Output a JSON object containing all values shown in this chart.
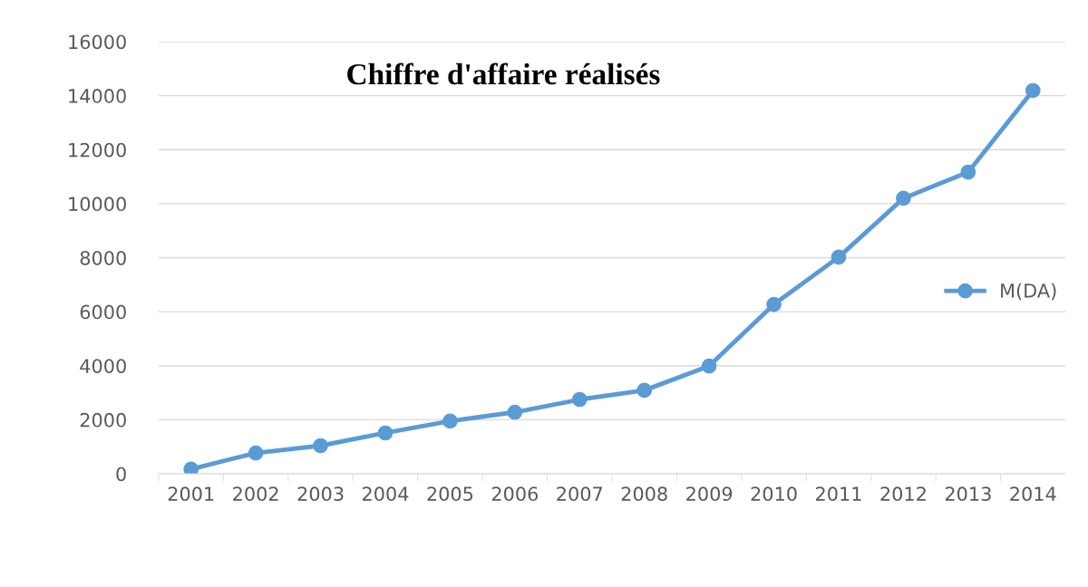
{
  "chart_data": {
    "type": "line",
    "title": "Chiffre d'affaire réalisés",
    "categories": [
      "2001",
      "2002",
      "2003",
      "2004",
      "2005",
      "2006",
      "2007",
      "2008",
      "2009",
      "2010",
      "2011",
      "2012",
      "2013",
      "2014"
    ],
    "series": [
      {
        "name": "M(DA)",
        "color": "#5b9bd5",
        "values": [
          170,
          770,
          1040,
          1510,
          1950,
          2280,
          2750,
          3090,
          3990,
          6270,
          8020,
          10200,
          11170,
          14190
        ]
      }
    ],
    "ylim": [
      0,
      16000
    ],
    "yticks": [
      0,
      2000,
      4000,
      6000,
      8000,
      10000,
      12000,
      14000,
      16000
    ],
    "grid": "y",
    "legend": "right",
    "marker": "circle",
    "line_style": "solid"
  }
}
